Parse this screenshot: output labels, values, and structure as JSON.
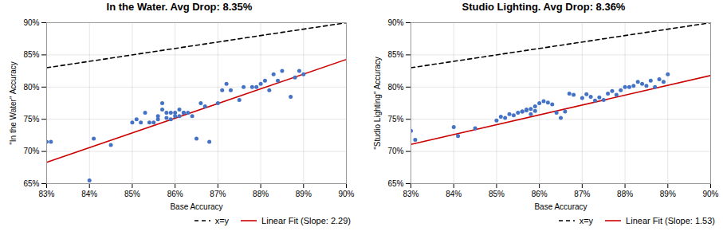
{
  "chart_data": [
    {
      "type": "scatter",
      "title": "In the Water. Avg Drop: 8.35%",
      "xlabel": "Base Accuracy",
      "ylabel": "\"In the Water\" Accuracy",
      "xlim": [
        0.83,
        0.9
      ],
      "ylim": [
        0.65,
        0.9
      ],
      "xticks": [
        {
          "value": 0.83,
          "label": "83%"
        },
        {
          "value": 0.84,
          "label": "84%"
        },
        {
          "value": 0.85,
          "label": "85%"
        },
        {
          "value": 0.86,
          "label": "86%"
        },
        {
          "value": 0.87,
          "label": "87%"
        },
        {
          "value": 0.88,
          "label": "88%"
        },
        {
          "value": 0.89,
          "label": "89%"
        },
        {
          "value": 0.9,
          "label": "90%"
        }
      ],
      "yticks": [
        {
          "value": 0.65,
          "label": "65%"
        },
        {
          "value": 0.7,
          "label": "70%"
        },
        {
          "value": 0.75,
          "label": "75%"
        },
        {
          "value": 0.8,
          "label": "80%"
        },
        {
          "value": 0.85,
          "label": "85%"
        },
        {
          "value": 0.9,
          "label": "90%"
        }
      ],
      "grid": true,
      "legend": "lower right",
      "series": [
        {
          "name": "x=y",
          "type": "line",
          "color": "#000000",
          "line_style": "dashed",
          "x": [
            0.83,
            0.9
          ],
          "values": [
            0.83,
            0.9
          ]
        },
        {
          "name": "Linear Fit (Slope: 2.29)",
          "type": "line",
          "color": "#cc0000",
          "line_style": "solid",
          "x": [
            0.83,
            0.9
          ],
          "values": [
            0.683,
            0.843
          ]
        },
        {
          "type": "scatter",
          "color": "#4472c4",
          "marker": "circle",
          "x": [
            0.83,
            0.831,
            0.84,
            0.841,
            0.845,
            0.85,
            0.851,
            0.852,
            0.853,
            0.854,
            0.855,
            0.856,
            0.856,
            0.857,
            0.857,
            0.858,
            0.858,
            0.859,
            0.859,
            0.86,
            0.86,
            0.861,
            0.861,
            0.862,
            0.862,
            0.863,
            0.864,
            0.865,
            0.866,
            0.867,
            0.868,
            0.87,
            0.871,
            0.872,
            0.873,
            0.875,
            0.876,
            0.878,
            0.879,
            0.88,
            0.881,
            0.882,
            0.883,
            0.884,
            0.885,
            0.887,
            0.888,
            0.889,
            0.89
          ],
          "values": [
            0.715,
            0.715,
            0.655,
            0.72,
            0.71,
            0.745,
            0.75,
            0.745,
            0.76,
            0.745,
            0.745,
            0.75,
            0.755,
            0.765,
            0.775,
            0.752,
            0.76,
            0.75,
            0.76,
            0.755,
            0.76,
            0.765,
            0.755,
            0.76,
            0.76,
            0.76,
            0.755,
            0.72,
            0.775,
            0.77,
            0.715,
            0.775,
            0.795,
            0.805,
            0.795,
            0.78,
            0.8,
            0.8,
            0.8,
            0.805,
            0.81,
            0.795,
            0.82,
            0.81,
            0.825,
            0.785,
            0.815,
            0.825,
            0.82
          ]
        }
      ]
    },
    {
      "type": "scatter",
      "title": "Studio Lighting. Avg Drop: 8.36%",
      "xlabel": "Base Accuracy",
      "ylabel": "\"Studio Lighting\" Accuracy",
      "xlim": [
        0.83,
        0.9
      ],
      "ylim": [
        0.65,
        0.9
      ],
      "xticks": [
        {
          "value": 0.83,
          "label": "83%"
        },
        {
          "value": 0.84,
          "label": "84%"
        },
        {
          "value": 0.85,
          "label": "85%"
        },
        {
          "value": 0.86,
          "label": "86%"
        },
        {
          "value": 0.87,
          "label": "87%"
        },
        {
          "value": 0.88,
          "label": "88%"
        },
        {
          "value": 0.89,
          "label": "89%"
        },
        {
          "value": 0.9,
          "label": "90%"
        }
      ],
      "yticks": [
        {
          "value": 0.65,
          "label": "65%"
        },
        {
          "value": 0.7,
          "label": "70%"
        },
        {
          "value": 0.75,
          "label": "75%"
        },
        {
          "value": 0.8,
          "label": "80%"
        },
        {
          "value": 0.85,
          "label": "85%"
        },
        {
          "value": 0.9,
          "label": "90%"
        }
      ],
      "grid": true,
      "legend": "lower right",
      "series": [
        {
          "name": "x=y",
          "type": "line",
          "color": "#000000",
          "line_style": "dashed",
          "x": [
            0.83,
            0.9
          ],
          "values": [
            0.83,
            0.9
          ]
        },
        {
          "name": "Linear Fit (Slope: 1.53)",
          "type": "line",
          "color": "#cc0000",
          "line_style": "solid",
          "x": [
            0.83,
            0.9
          ],
          "values": [
            0.711,
            0.818
          ]
        },
        {
          "type": "scatter",
          "color": "#4472c4",
          "marker": "circle",
          "x": [
            0.83,
            0.831,
            0.84,
            0.841,
            0.845,
            0.85,
            0.851,
            0.852,
            0.853,
            0.854,
            0.855,
            0.856,
            0.856,
            0.857,
            0.857,
            0.858,
            0.858,
            0.859,
            0.859,
            0.86,
            0.861,
            0.862,
            0.863,
            0.864,
            0.865,
            0.866,
            0.867,
            0.868,
            0.87,
            0.871,
            0.872,
            0.873,
            0.874,
            0.875,
            0.876,
            0.877,
            0.878,
            0.879,
            0.88,
            0.881,
            0.882,
            0.883,
            0.884,
            0.885,
            0.886,
            0.887,
            0.888,
            0.889,
            0.89
          ],
          "values": [
            0.732,
            0.718,
            0.738,
            0.724,
            0.736,
            0.748,
            0.754,
            0.752,
            0.758,
            0.756,
            0.76,
            0.762,
            0.762,
            0.764,
            0.765,
            0.766,
            0.758,
            0.763,
            0.77,
            0.775,
            0.778,
            0.776,
            0.773,
            0.76,
            0.752,
            0.762,
            0.79,
            0.788,
            0.783,
            0.789,
            0.785,
            0.779,
            0.784,
            0.78,
            0.79,
            0.794,
            0.788,
            0.795,
            0.8,
            0.8,
            0.802,
            0.808,
            0.805,
            0.802,
            0.81,
            0.8,
            0.812,
            0.808,
            0.82
          ]
        }
      ]
    }
  ]
}
